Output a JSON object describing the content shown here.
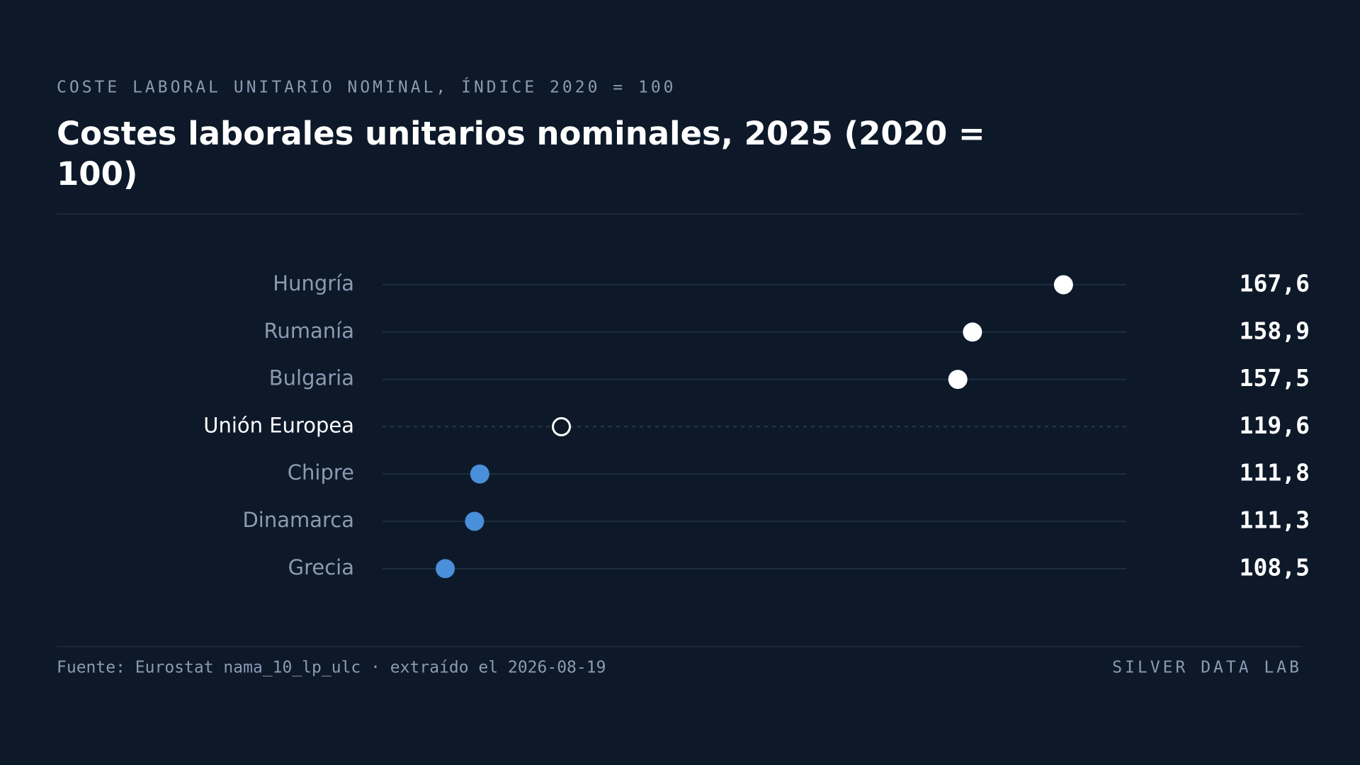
{
  "chart_data": {
    "type": "dot",
    "subtitle": "COSTE LABORAL UNITARIO NOMINAL, ÍNDICE 2020 = 100",
    "title": "Costes laborales unitarios nominales, 2025 (2020 = 100)",
    "categories": [
      "Hungría",
      "Rumanía",
      "Bulgaria",
      "Unión Europea",
      "Chipre",
      "Dinamarca",
      "Grecia"
    ],
    "values": [
      167.6,
      158.9,
      157.5,
      119.6,
      111.8,
      111.3,
      108.5
    ],
    "value_labels": [
      "167,6",
      "158,9",
      "157,5",
      "119,6",
      "111,8",
      "111,3",
      "108,5"
    ],
    "colors": [
      "#ffffff",
      "#ffffff",
      "#ffffff",
      "#ffffff",
      "#4a8fd9",
      "#4a8fd9",
      "#4a8fd9"
    ],
    "highlight": "Unión Europea",
    "xlim": [
      102.5,
      173.6
    ],
    "source": "Fuente: Eurostat nama_10_lp_ulc · extraído el 2026-08-19",
    "brand": "SILVER DATA LAB"
  }
}
